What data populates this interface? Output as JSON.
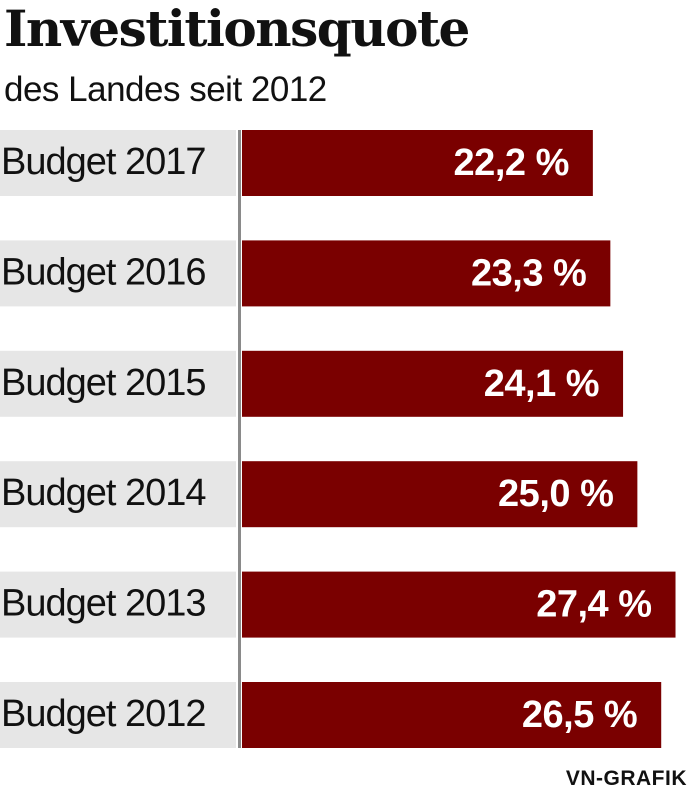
{
  "header": {
    "title": "Investitionsquote",
    "subtitle": "des Landes seit 2012"
  },
  "footer": {
    "credit": "VN-GRAFIK"
  },
  "colors": {
    "bar": "#7a0000",
    "label_band": "#e6e6e6",
    "axis": "#8a8a8a",
    "value_text": "#ffffff",
    "category_text": "#111111"
  },
  "chart_data": {
    "type": "bar",
    "orientation": "horizontal",
    "categories": [
      "Budget 2017",
      "Budget 2016",
      "Budget 2015",
      "Budget 2014",
      "Budget 2013",
      "Budget 2012"
    ],
    "values": [
      22.2,
      23.3,
      24.1,
      25.0,
      27.4,
      26.5
    ],
    "value_labels": [
      "22,2 %",
      "23,3 %",
      "24,1 %",
      "25,0 %",
      "27,4 %",
      "26,5 %"
    ],
    "unit": "%",
    "xlim": [
      0,
      28.5
    ],
    "grid": false,
    "legend": "none"
  }
}
